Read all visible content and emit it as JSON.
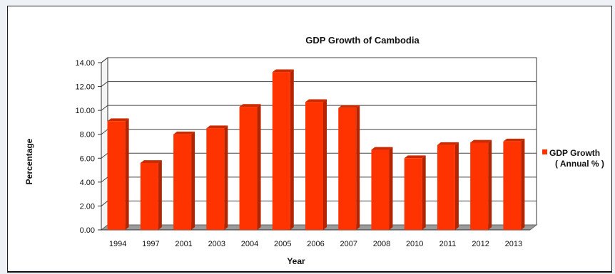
{
  "chart_data": {
    "type": "bar",
    "title": "GDP Growth of Cambodia",
    "xlabel": "Year",
    "ylabel": "Percentage",
    "categories": [
      "1994",
      "1997",
      "2001",
      "2003",
      "2004",
      "2005",
      "2006",
      "2007",
      "2008",
      "2010",
      "2011",
      "2012",
      "2013"
    ],
    "series": [
      {
        "name": "GDP Growth ( Annual % )",
        "legend_lines": [
          "GDP Growth",
          "( Annual % )"
        ],
        "values": [
          9.1,
          5.6,
          8.0,
          8.5,
          10.3,
          13.2,
          10.7,
          10.2,
          6.7,
          6.0,
          7.1,
          7.3,
          7.4
        ],
        "color": "#ff3300",
        "side_color": "#b32400",
        "top_color": "#cc2a00"
      }
    ],
    "ylim": [
      0,
      14
    ],
    "yticks": [
      "0.00",
      "2.00",
      "4.00",
      "6.00",
      "8.00",
      "10.00",
      "12.00",
      "14.00"
    ],
    "grid": true,
    "legend_position": "right"
  }
}
